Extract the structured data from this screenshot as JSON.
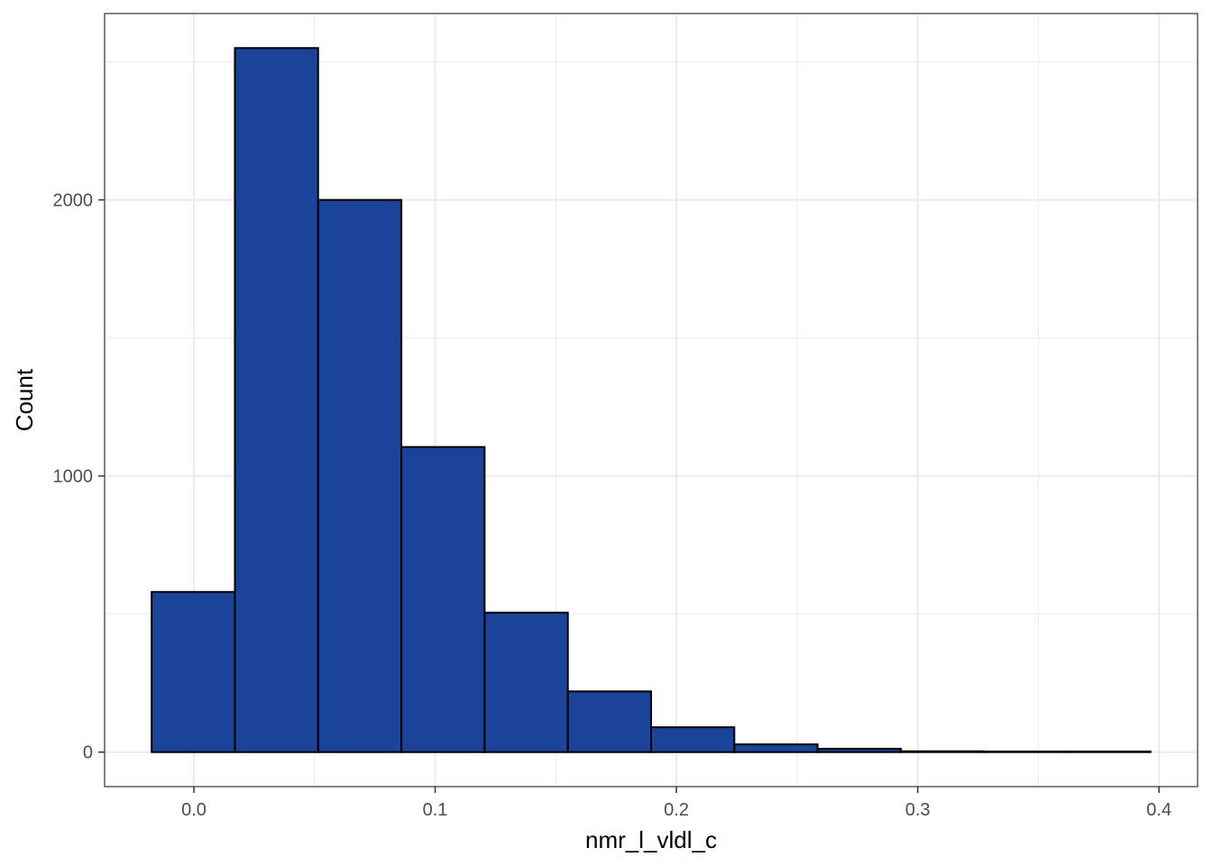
{
  "chart_data": {
    "type": "bar",
    "subtype": "histogram",
    "title": "",
    "xlabel": "nmr_l_vldl_c",
    "ylabel": "Count",
    "bins": [
      {
        "x0": -0.0175,
        "x1": 0.017,
        "count": 580
      },
      {
        "x0": 0.017,
        "x1": 0.0515,
        "count": 2550
      },
      {
        "x0": 0.0515,
        "x1": 0.086,
        "count": 2000
      },
      {
        "x0": 0.086,
        "x1": 0.1205,
        "count": 1105
      },
      {
        "x0": 0.1205,
        "x1": 0.155,
        "count": 505
      },
      {
        "x0": 0.155,
        "x1": 0.1895,
        "count": 220
      },
      {
        "x0": 0.1895,
        "x1": 0.224,
        "count": 90
      },
      {
        "x0": 0.224,
        "x1": 0.2585,
        "count": 28
      },
      {
        "x0": 0.2585,
        "x1": 0.293,
        "count": 12
      },
      {
        "x0": 0.293,
        "x1": 0.3275,
        "count": 3
      },
      {
        "x0": 0.3275,
        "x1": 0.362,
        "count": 2
      },
      {
        "x0": 0.362,
        "x1": 0.3965,
        "count": 2
      }
    ],
    "xlim": [
      -0.037,
      0.416
    ],
    "ylim": [
      -125,
      2675
    ],
    "x_ticks": [
      0.0,
      0.1,
      0.2,
      0.3,
      0.4
    ],
    "x_tick_labels": [
      "0.0",
      "0.1",
      "0.2",
      "0.3",
      "0.4"
    ],
    "x_minor_ticks": [
      0.05,
      0.15,
      0.25,
      0.35
    ],
    "y_ticks": [
      0,
      1000,
      2000
    ],
    "y_tick_labels": [
      "0",
      "1000",
      "2000"
    ],
    "y_minor_ticks": [
      500,
      1500,
      2500
    ],
    "grid": true,
    "legend": "none",
    "bar_fill": "#1a4499",
    "bar_stroke": "#000000",
    "grid_color": "#ebebeb",
    "panel_border": "#333333"
  }
}
